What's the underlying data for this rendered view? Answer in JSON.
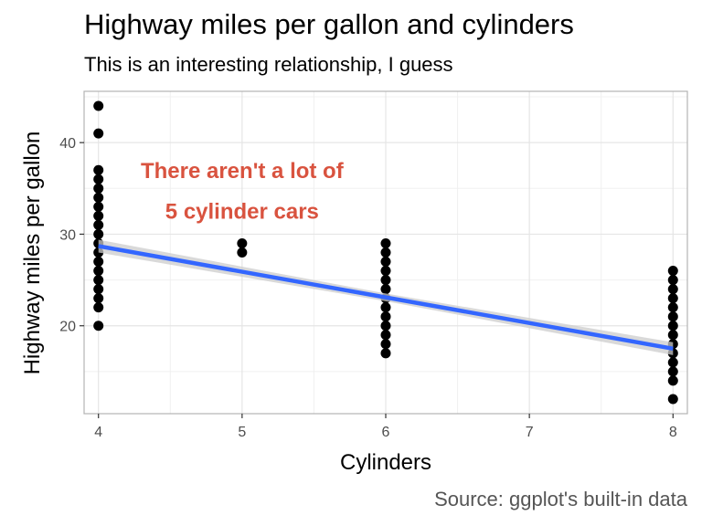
{
  "chart_data": {
    "type": "scatter",
    "title": "Highway miles per gallon and cylinders",
    "subtitle": "This is an interesting relationship, I guess",
    "caption": "Source: ggplot's built-in data",
    "xlabel": "Cylinders",
    "ylabel": "Highway miles per gallon",
    "xlim": [
      3.9,
      8.1
    ],
    "ylim": [
      10.4,
      45.6
    ],
    "x_ticks": [
      4,
      5,
      6,
      7,
      8
    ],
    "y_ticks": [
      20,
      30,
      40
    ],
    "grid": true,
    "point_color": "#000000",
    "smooth_color": "#3366ff",
    "band_color": "#cccccc",
    "annotation_color": "#d9533f",
    "points": [
      {
        "x": 4,
        "y": [
          20,
          22,
          23,
          24,
          25,
          26,
          27,
          28,
          29,
          30,
          31,
          32,
          33,
          34,
          35,
          36,
          37,
          41,
          44
        ]
      },
      {
        "x": 5,
        "y": [
          28,
          29
        ]
      },
      {
        "x": 6,
        "y": [
          17,
          18,
          19,
          20,
          21,
          22,
          23,
          24,
          25,
          26,
          27,
          28,
          29
        ]
      },
      {
        "x": 8,
        "y": [
          12,
          14,
          15,
          16,
          17,
          18,
          19,
          20,
          21,
          22,
          23,
          24,
          25,
          26
        ]
      }
    ],
    "smooth": {
      "x": [
        4,
        8
      ],
      "y": [
        28.7,
        17.5
      ],
      "band": 0.7
    },
    "annotation": {
      "lines": [
        "There aren't a lot of",
        "5 cylinder cars"
      ],
      "x": 5.0,
      "y": [
        36.9,
        32.5
      ]
    }
  }
}
